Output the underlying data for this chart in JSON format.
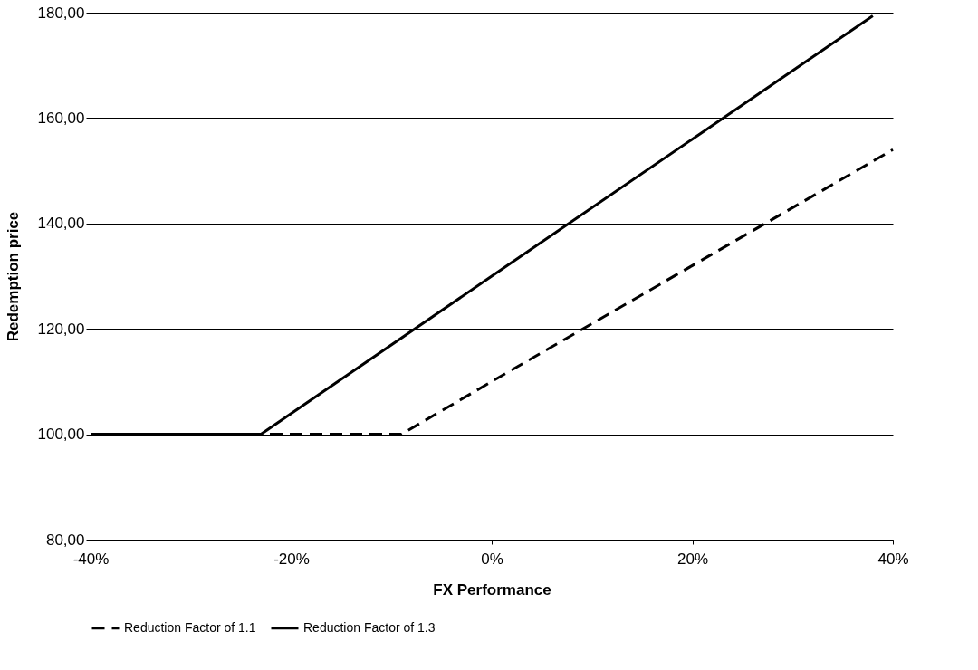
{
  "chart_data": {
    "type": "line",
    "xlabel": "FX Performance",
    "ylabel": "Redemption price",
    "xlim": [
      -40,
      40
    ],
    "ylim": [
      80,
      180
    ],
    "xticks": [
      {
        "value": -40,
        "label": "-40%"
      },
      {
        "value": -20,
        "label": "-20%"
      },
      {
        "value": 0,
        "label": "0%"
      },
      {
        "value": 20,
        "label": "20%"
      },
      {
        "value": 40,
        "label": "40%"
      }
    ],
    "yticks": [
      {
        "value": 80,
        "label": "80,00"
      },
      {
        "value": 100,
        "label": "100,00"
      },
      {
        "value": 120,
        "label": "120,00"
      },
      {
        "value": 140,
        "label": "140,00"
      },
      {
        "value": 160,
        "label": "160,00"
      },
      {
        "value": 180,
        "label": "180,00"
      }
    ],
    "grid": "y",
    "legend": "bottom",
    "marker": "none",
    "series": [
      {
        "name": "Reduction Factor of 1.1",
        "color": "#000000",
        "line_style": "dashed",
        "x": [
          -40,
          -9,
          0,
          20,
          40
        ],
        "values": [
          100,
          100,
          110,
          132,
          154
        ]
      },
      {
        "name": "Reduction Factor of 1.3",
        "color": "#000000",
        "line_style": "solid",
        "x": [
          -40,
          -23,
          0,
          20,
          38
        ],
        "values": [
          100,
          100,
          130,
          156,
          179.4
        ]
      }
    ]
  }
}
